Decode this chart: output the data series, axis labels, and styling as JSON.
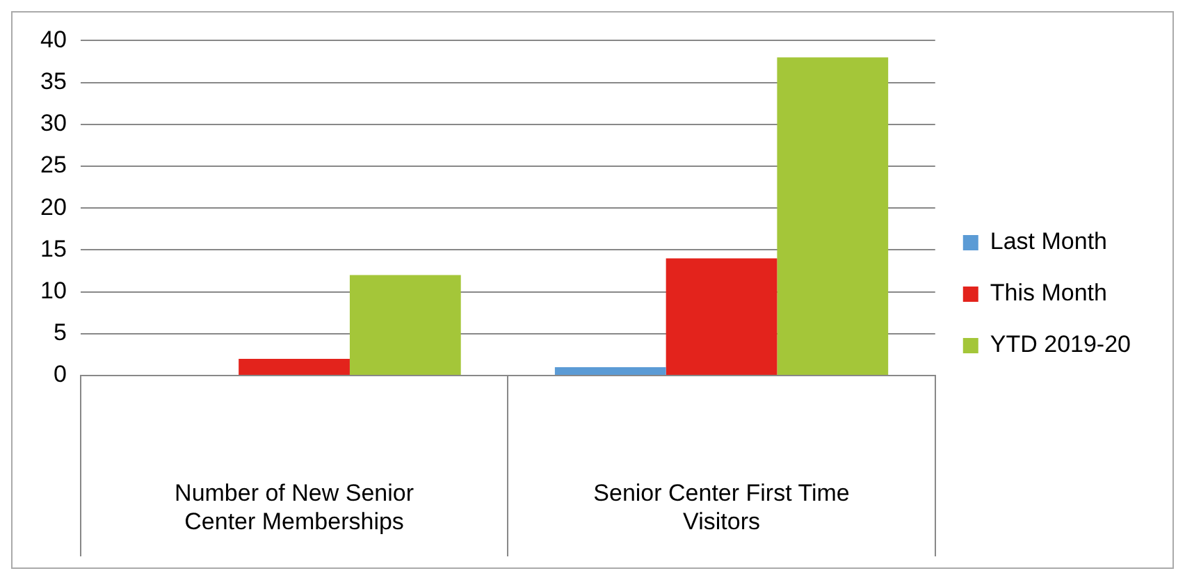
{
  "chart_data": {
    "type": "bar",
    "categories": [
      "Number of New Senior Center Memberships",
      "Senior Center First Time Visitors"
    ],
    "series": [
      {
        "name": "Last Month",
        "color": "#5b9bd5",
        "values": [
          0,
          1
        ]
      },
      {
        "name": "This Month",
        "color": "#e3231c",
        "values": [
          2,
          14
        ]
      },
      {
        "name": "YTD 2019-20",
        "color": "#a4c639",
        "values": [
          12,
          38
        ]
      }
    ],
    "ylim": [
      0,
      40
    ],
    "yticks": [
      0,
      5,
      10,
      15,
      20,
      25,
      30,
      35,
      40
    ],
    "grid": "y",
    "legend": "right"
  }
}
